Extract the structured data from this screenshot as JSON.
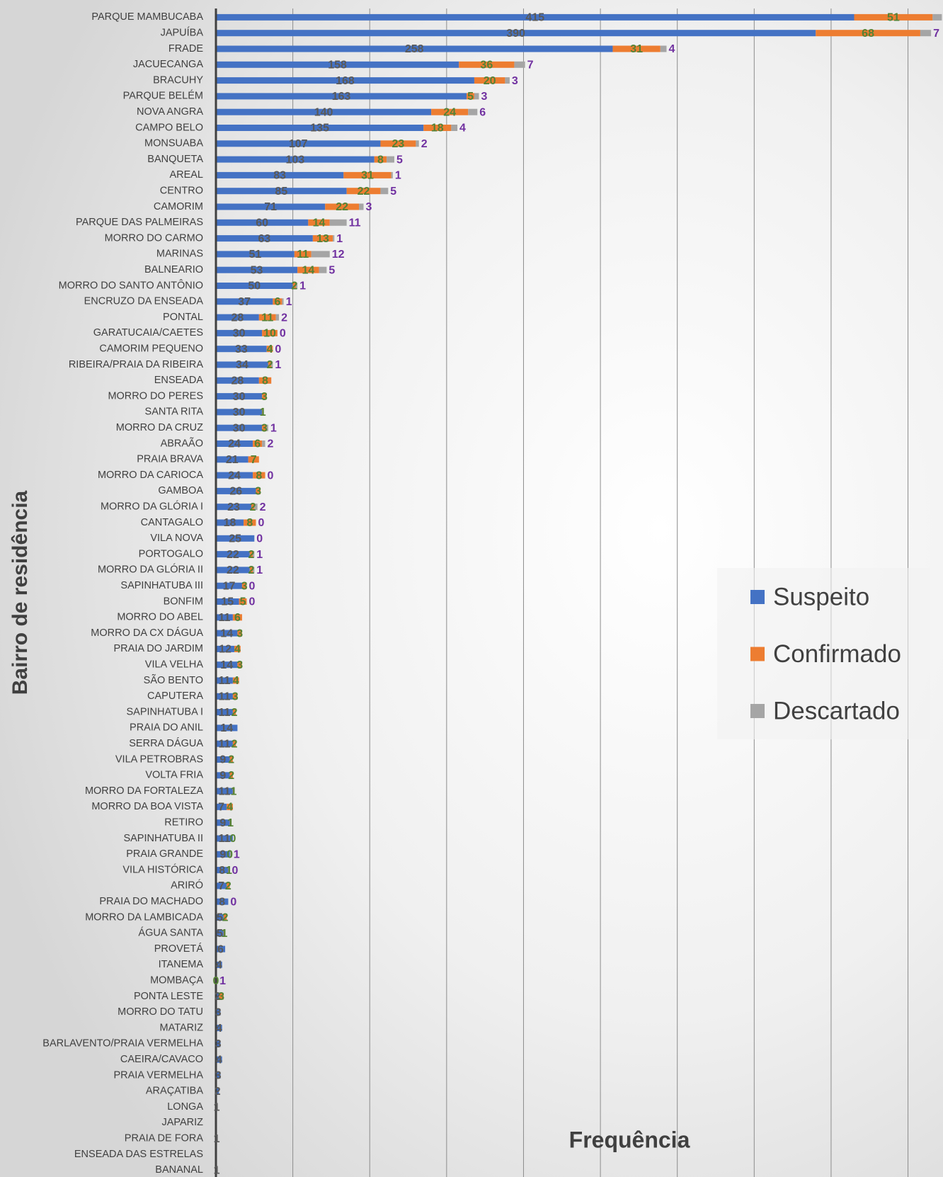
{
  "chart_data": {
    "type": "stacked_barh",
    "y_axis_label": "Bairro de residência",
    "x_axis_label": "Frequência",
    "categories": [
      "PARQUE MAMBUCABA",
      "JAPUÍBA",
      "FRADE",
      "JACUECANGA",
      "BRACUHY",
      "PARQUE BELÉM",
      "NOVA ANGRA",
      "CAMPO BELO",
      "MONSUABA",
      "BANQUETA",
      "AREAL",
      "CENTRO",
      "CAMORIM",
      "PARQUE DAS PALMEIRAS",
      "MORRO DO CARMO",
      "MARINAS",
      "BALNEARIO",
      "MORRO DO SANTO ANTÔNIO",
      "ENCRUZO DA ENSEADA",
      "PONTAL",
      "GARATUCAIA/CAETES",
      "CAMORIM PEQUENO",
      "RIBEIRA/PRAIA DA RIBEIRA",
      "ENSEADA",
      "MORRO DO PERES",
      "SANTA RITA",
      "MORRO DA CRUZ",
      "ABRAÃO",
      "PRAIA BRAVA",
      "MORRO DA CARIOCA",
      "GAMBOA",
      "MORRO DA GLÓRIA I",
      "CANTAGALO",
      "VILA NOVA",
      "PORTOGALO",
      "MORRO DA GLÓRIA II",
      "SAPINHATUBA III",
      "BONFIM",
      "MORRO DO ABEL",
      "MORRO DA CX DÁGUA",
      "PRAIA DO JARDIM",
      "VILA VELHA",
      "SÃO BENTO",
      "CAPUTERA",
      "SAPINHATUBA I",
      "PRAIA DO ANIL",
      "SERRA DÁGUA",
      "VILA PETROBRAS",
      "VOLTA FRIA",
      "MORRO DA FORTALEZA",
      "MORRO DA BOA VISTA",
      "RETIRO",
      "SAPINHATUBA II",
      "PRAIA GRANDE",
      "VILA HISTÓRICA",
      "ARIRÓ",
      "PRAIA DO MACHADO",
      "MORRO DA LAMBICADA",
      "ÁGUA SANTA",
      "PROVETÁ",
      "ITANEMA",
      "MOMBAÇA",
      "PONTA LESTE",
      "MORRO DO TATU",
      "MATARIZ",
      "BARLAVENTO/PRAIA VERMELHA",
      "CAEIRA/CAVACO",
      "PRAIA VERMELHA",
      "ARAÇATIBA",
      "LONGA",
      "JAPARIZ",
      "PRAIA DE FORA",
      "ENSEADA DAS ESTRELAS",
      "BANANAL"
    ],
    "series": [
      {
        "name": "Suspeito",
        "color": "#4472c4",
        "label_color": "#595959",
        "values": [
          415,
          390,
          258,
          158,
          168,
          163,
          140,
          135,
          107,
          103,
          83,
          85,
          71,
          60,
          63,
          51,
          53,
          50,
          37,
          28,
          30,
          33,
          34,
          28,
          30,
          30,
          30,
          24,
          21,
          24,
          26,
          23,
          18,
          25,
          22,
          22,
          17,
          15,
          11,
          14,
          12,
          14,
          11,
          11,
          11,
          14,
          11,
          9,
          9,
          11,
          7,
          9,
          11,
          9,
          8,
          7,
          8,
          5,
          5,
          6,
          4,
          null,
          2,
          3,
          4,
          3,
          4,
          3,
          2,
          1,
          null,
          1,
          null,
          1
        ]
      },
      {
        "name": "Confirmado",
        "color": "#ed7d31",
        "label_color": "#548235",
        "values": [
          51,
          68,
          31,
          36,
          20,
          5,
          24,
          18,
          23,
          8,
          31,
          22,
          22,
          14,
          13,
          11,
          14,
          2,
          6,
          11,
          10,
          4,
          2,
          8,
          3,
          1,
          3,
          6,
          7,
          8,
          3,
          2,
          8,
          null,
          2,
          2,
          3,
          5,
          6,
          3,
          4,
          3,
          4,
          3,
          2,
          null,
          2,
          2,
          2,
          1,
          4,
          1,
          0,
          0,
          1,
          2,
          null,
          2,
          1,
          null,
          null,
          0,
          3,
          null,
          null,
          null,
          null,
          null,
          null,
          null,
          null,
          null,
          null,
          null
        ]
      },
      {
        "name": "Descartado",
        "color": "#a5a5a5",
        "label_color": "#7030a0",
        "values": [
          6,
          7,
          4,
          7,
          3,
          3,
          6,
          4,
          2,
          5,
          1,
          5,
          3,
          11,
          1,
          12,
          5,
          1,
          1,
          2,
          0,
          0,
          1,
          null,
          null,
          null,
          1,
          2,
          null,
          0,
          null,
          2,
          0,
          0,
          1,
          1,
          0,
          0,
          null,
          null,
          null,
          null,
          null,
          null,
          null,
          null,
          null,
          null,
          null,
          null,
          null,
          null,
          null,
          1,
          0,
          null,
          0,
          null,
          null,
          null,
          null,
          1,
          null,
          null,
          null,
          null,
          null,
          null,
          null,
          null,
          null,
          null,
          null,
          null
        ]
      }
    ],
    "xlim": [
      0,
      470
    ],
    "xticks": [
      50,
      100,
      150,
      200,
      250,
      300,
      350,
      400,
      450
    ],
    "grid": true,
    "legend": "right"
  }
}
